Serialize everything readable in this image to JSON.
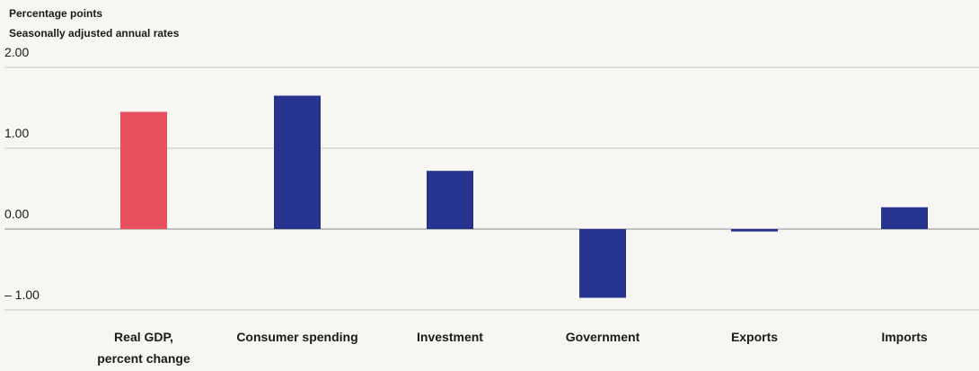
{
  "chart_data": {
    "type": "bar",
    "unit_label": "Percentage points",
    "subtitle": "Seasonally adjusted annual rates",
    "categories": [
      "Real GDP, percent change",
      "Consumer spending",
      "Investment",
      "Government",
      "Exports",
      "Imports"
    ],
    "category_lines": [
      [
        "Real GDP,",
        "percent change"
      ],
      [
        "Consumer spending"
      ],
      [
        "Investment"
      ],
      [
        "Government"
      ],
      [
        "Exports"
      ],
      [
        "Imports"
      ]
    ],
    "values": [
      1.45,
      1.65,
      0.72,
      -0.85,
      -0.03,
      0.27
    ],
    "colors": [
      "#e8505e",
      "#26348f",
      "#26348f",
      "#26348f",
      "#26348f",
      "#26348f"
    ],
    "ylim": [
      -1,
      2
    ],
    "yticks": [
      2,
      1,
      0,
      -1
    ],
    "ytick_labels": [
      "2.00",
      "1.00",
      "0.00",
      "– 1.00"
    ],
    "grid": true
  }
}
